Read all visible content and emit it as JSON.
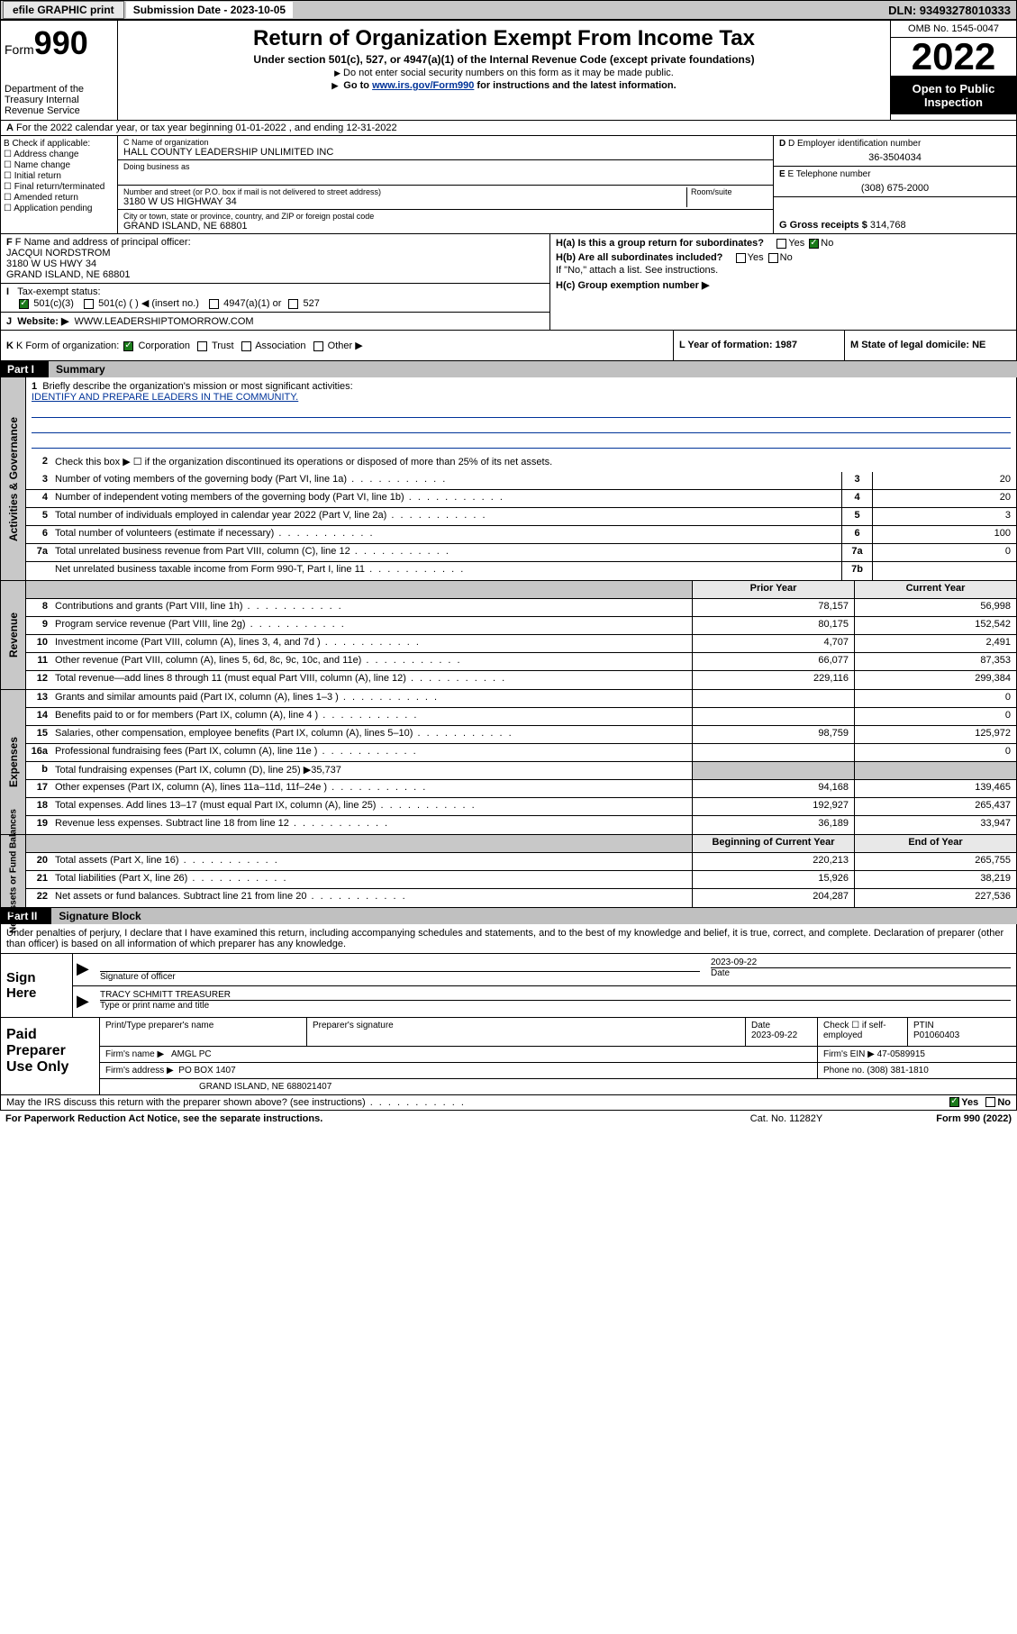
{
  "topbar": {
    "efile": "efile GRAPHIC print",
    "sub_label": "Submission Date - 2023-10-05",
    "dln": "DLN: 93493278010333"
  },
  "header": {
    "form_label": "Form",
    "form_num": "990",
    "dept": "Department of the Treasury Internal Revenue Service",
    "title": "Return of Organization Exempt From Income Tax",
    "sub1": "Under section 501(c), 527, or 4947(a)(1) of the Internal Revenue Code (except private foundations)",
    "sub2": "Do not enter social security numbers on this form as it may be made public.",
    "sub3_pre": "Go to ",
    "sub3_link": "www.irs.gov/Form990",
    "sub3_post": " for instructions and the latest information.",
    "omb": "OMB No. 1545-0047",
    "year": "2022",
    "open": "Open to Public Inspection"
  },
  "row_a": "For the 2022 calendar year, or tax year beginning 01-01-2022    , and ending 12-31-2022",
  "col_b": {
    "label": "B Check if applicable:",
    "items": [
      "Address change",
      "Name change",
      "Initial return",
      "Final return/terminated",
      "Amended return",
      "Application pending"
    ]
  },
  "col_c": {
    "name_lbl": "C Name of organization",
    "name": "HALL COUNTY LEADERSHIP UNLIMITED INC",
    "dba_lbl": "Doing business as",
    "addr_lbl": "Number and street (or P.O. box if mail is not delivered to street address)",
    "room_lbl": "Room/suite",
    "addr": "3180 W US HIGHWAY 34",
    "city_lbl": "City or town, state or province, country, and ZIP or foreign postal code",
    "city": "GRAND ISLAND, NE  68801"
  },
  "col_d": {
    "ein_lbl": "D Employer identification number",
    "ein": "36-3504034",
    "tel_lbl": "E Telephone number",
    "tel": "(308) 675-2000",
    "gross_lbl": "G Gross receipts $",
    "gross": "314,768"
  },
  "section_f": {
    "f_lbl": "F Name and address of principal officer:",
    "f_name": "JACQUI NORDSTROM",
    "f_addr1": "3180 W US HWY 34",
    "f_addr2": "GRAND ISLAND, NE  68801",
    "i_lbl": "Tax-exempt status:",
    "i_501c3": "501(c)(3)",
    "i_501c": "501(c) (  ) ◀ (insert no.)",
    "i_4947": "4947(a)(1) or",
    "i_527": "527",
    "j_lbl": "Website: ▶",
    "j_val": "WWW.LEADERSHIPTOMORROW.COM"
  },
  "section_h": {
    "ha": "H(a)  Is this a group return for subordinates?",
    "hb": "H(b)  Are all subordinates included?",
    "hb_note": "If \"No,\" attach a list. See instructions.",
    "hc": "H(c)  Group exemption number ▶",
    "yes": "Yes",
    "no": "No"
  },
  "section_k": {
    "k_lbl": "K Form of organization:",
    "corp": "Corporation",
    "trust": "Trust",
    "assoc": "Association",
    "other": "Other ▶",
    "l_lbl": "L Year of formation: 1987",
    "m_lbl": "M State of legal domicile: NE"
  },
  "part1": {
    "label": "Part I",
    "title": "Summary"
  },
  "governance": {
    "side": "Activities & Governance",
    "line1_lbl": "Briefly describe the organization's mission or most significant activities:",
    "line1_val": "IDENTIFY AND PREPARE LEADERS IN THE COMMUNITY.",
    "line2": "Check this box ▶ ☐  if the organization discontinued its operations or disposed of more than 25% of its net assets.",
    "rows": [
      {
        "n": "3",
        "d": "Number of voting members of the governing body (Part VI, line 1a)",
        "bn": "3",
        "v": "20"
      },
      {
        "n": "4",
        "d": "Number of independent voting members of the governing body (Part VI, line 1b)",
        "bn": "4",
        "v": "20"
      },
      {
        "n": "5",
        "d": "Total number of individuals employed in calendar year 2022 (Part V, line 2a)",
        "bn": "5",
        "v": "3"
      },
      {
        "n": "6",
        "d": "Total number of volunteers (estimate if necessary)",
        "bn": "6",
        "v": "100"
      },
      {
        "n": "7a",
        "d": "Total unrelated business revenue from Part VIII, column (C), line 12",
        "bn": "7a",
        "v": "0"
      },
      {
        "n": "",
        "d": "Net unrelated business taxable income from Form 990-T, Part I, line 11",
        "bn": "7b",
        "v": ""
      }
    ]
  },
  "revenue": {
    "side": "Revenue",
    "header_prior": "Prior Year",
    "header_current": "Current Year",
    "rows": [
      {
        "n": "8",
        "d": "Contributions and grants (Part VIII, line 1h)",
        "p": "78,157",
        "c": "56,998"
      },
      {
        "n": "9",
        "d": "Program service revenue (Part VIII, line 2g)",
        "p": "80,175",
        "c": "152,542"
      },
      {
        "n": "10",
        "d": "Investment income (Part VIII, column (A), lines 3, 4, and 7d )",
        "p": "4,707",
        "c": "2,491"
      },
      {
        "n": "11",
        "d": "Other revenue (Part VIII, column (A), lines 5, 6d, 8c, 9c, 10c, and 11e)",
        "p": "66,077",
        "c": "87,353"
      },
      {
        "n": "12",
        "d": "Total revenue—add lines 8 through 11 (must equal Part VIII, column (A), line 12)",
        "p": "229,116",
        "c": "299,384"
      }
    ]
  },
  "expenses": {
    "side": "Expenses",
    "rows": [
      {
        "n": "13",
        "d": "Grants and similar amounts paid (Part IX, column (A), lines 1–3 )",
        "p": "",
        "c": "0"
      },
      {
        "n": "14",
        "d": "Benefits paid to or for members (Part IX, column (A), line 4 )",
        "p": "",
        "c": "0"
      },
      {
        "n": "15",
        "d": "Salaries, other compensation, employee benefits (Part IX, column (A), lines 5–10)",
        "p": "98,759",
        "c": "125,972"
      },
      {
        "n": "16a",
        "d": "Professional fundraising fees (Part IX, column (A), line 11e )",
        "p": "",
        "c": "0"
      },
      {
        "n": "b",
        "d": "Total fundraising expenses (Part IX, column (D), line 25) ▶35,737",
        "p": "shaded",
        "c": "shaded"
      },
      {
        "n": "17",
        "d": "Other expenses (Part IX, column (A), lines 11a–11d, 11f–24e )",
        "p": "94,168",
        "c": "139,465"
      },
      {
        "n": "18",
        "d": "Total expenses. Add lines 13–17 (must equal Part IX, column (A), line 25)",
        "p": "192,927",
        "c": "265,437"
      },
      {
        "n": "19",
        "d": "Revenue less expenses. Subtract line 18 from line 12",
        "p": "36,189",
        "c": "33,947"
      }
    ]
  },
  "netassets": {
    "side": "Net Assets or Fund Balances",
    "header_prior": "Beginning of Current Year",
    "header_current": "End of Year",
    "rows": [
      {
        "n": "20",
        "d": "Total assets (Part X, line 16)",
        "p": "220,213",
        "c": "265,755"
      },
      {
        "n": "21",
        "d": "Total liabilities (Part X, line 26)",
        "p": "15,926",
        "c": "38,219"
      },
      {
        "n": "22",
        "d": "Net assets or fund balances. Subtract line 21 from line 20",
        "p": "204,287",
        "c": "227,536"
      }
    ]
  },
  "part2": {
    "label": "Part II",
    "title": "Signature Block"
  },
  "sig_decl": "Under penalties of perjury, I declare that I have examined this return, including accompanying schedules and statements, and to the best of my knowledge and belief, it is true, correct, and complete. Declaration of preparer (other than officer) is based on all information of which preparer has any knowledge.",
  "sign": {
    "label": "Sign Here",
    "date": "2023-09-22",
    "sig_lbl": "Signature of officer",
    "date_lbl": "Date",
    "name": "TRACY SCHMITT TREASURER",
    "name_lbl": "Type or print name and title"
  },
  "paid": {
    "label": "Paid Preparer Use Only",
    "prep_name_lbl": "Print/Type preparer's name",
    "prep_sig_lbl": "Preparer's signature",
    "prep_date_lbl": "Date",
    "prep_date": "2023-09-22",
    "check_lbl": "Check ☐ if self-employed",
    "ptin_lbl": "PTIN",
    "ptin": "P01060403",
    "firm_name_lbl": "Firm's name    ▶",
    "firm_name": "AMGL PC",
    "firm_ein_lbl": "Firm's EIN ▶",
    "firm_ein": "47-0589915",
    "firm_addr_lbl": "Firm's address ▶",
    "firm_addr1": "PO BOX 1407",
    "firm_addr2": "GRAND ISLAND, NE  688021407",
    "phone_lbl": "Phone no.",
    "phone": "(308) 381-1810"
  },
  "discuss": {
    "q": "May the IRS discuss this return with the preparer shown above? (see instructions)",
    "yes": "Yes",
    "no": "No"
  },
  "footer": {
    "pra": "For Paperwork Reduction Act Notice, see the separate instructions.",
    "cat": "Cat. No. 11282Y",
    "form": "Form 990 (2022)"
  }
}
